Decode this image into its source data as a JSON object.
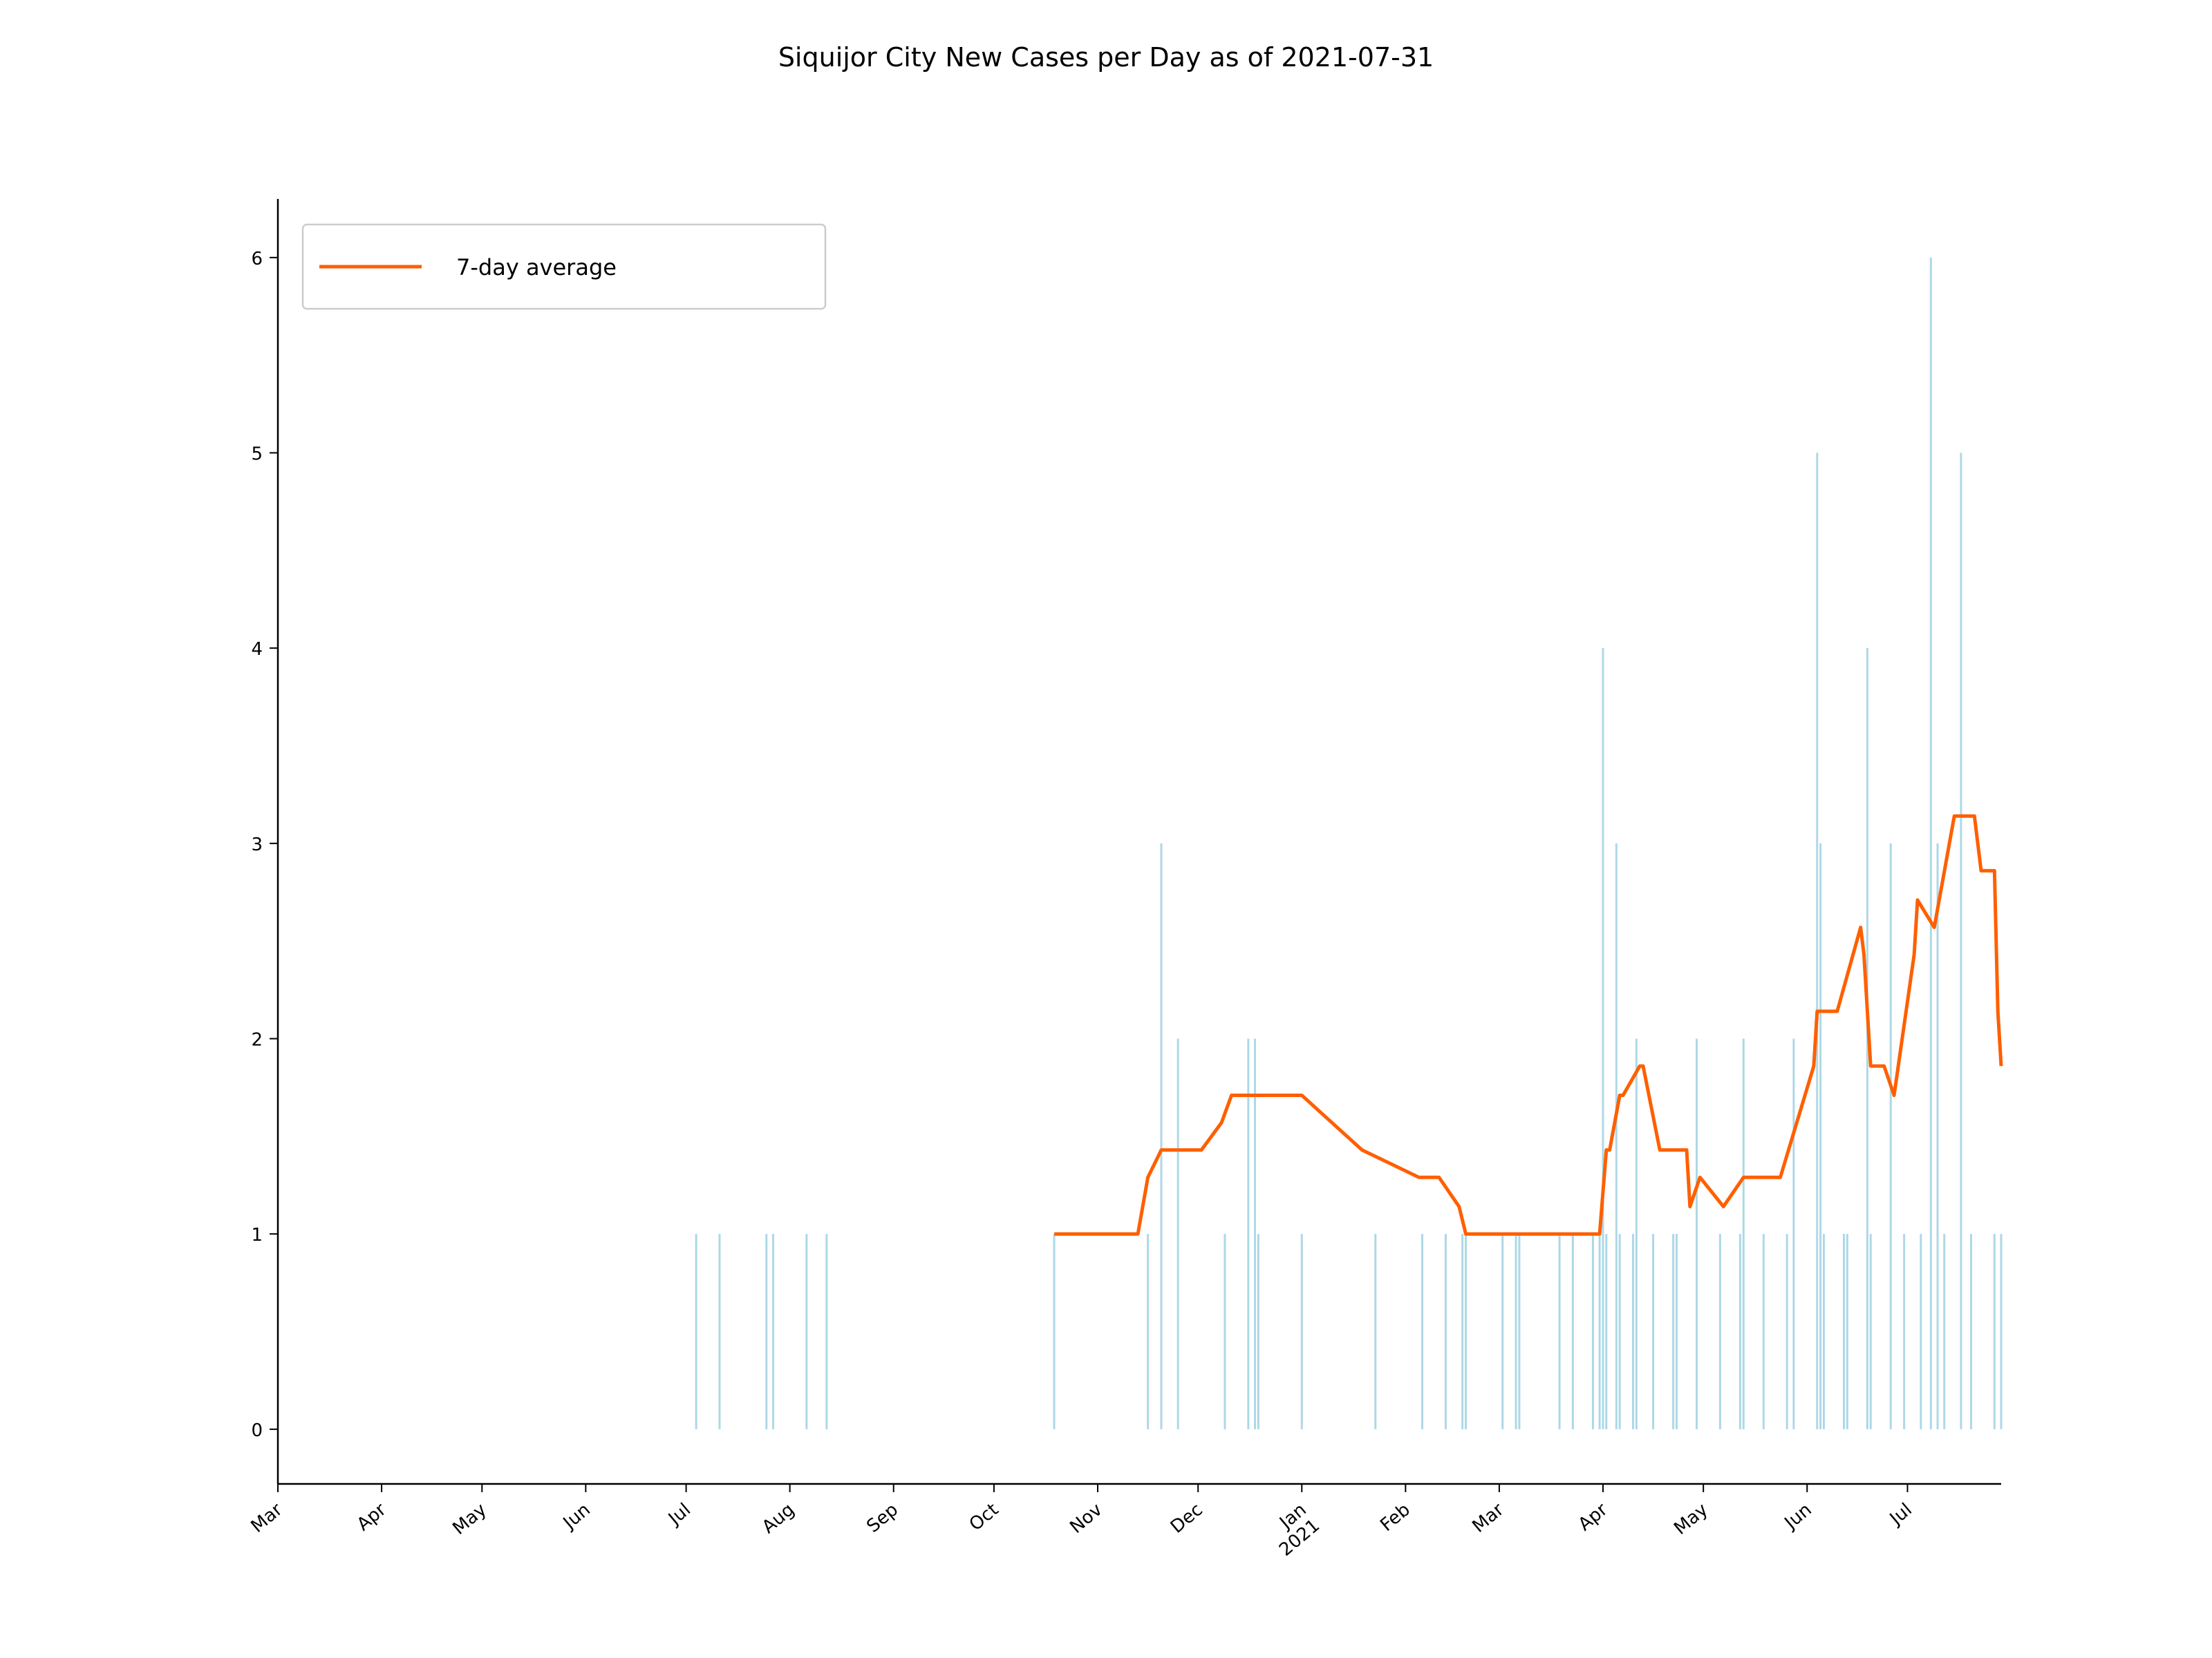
{
  "chart_data": {
    "type": "bar",
    "title": "Siquijor City New Cases per Day as of 2021-07-31",
    "xlabel": "",
    "ylabel": "",
    "legend": {
      "placement": "top-left",
      "entries": [
        "7-day average"
      ]
    },
    "grid": false,
    "xlim": [
      "2020-03-01",
      "2021-07-29"
    ],
    "ylim": [
      -0.28,
      6.3
    ],
    "yticks": [
      0,
      1,
      2,
      3,
      4,
      5,
      6
    ],
    "xticks": [
      {
        "date": "2020-03-01",
        "label": "Mar"
      },
      {
        "date": "2020-04-01",
        "label": "Apr"
      },
      {
        "date": "2020-05-01",
        "label": "May"
      },
      {
        "date": "2020-06-01",
        "label": "Jun"
      },
      {
        "date": "2020-07-01",
        "label": "Jul"
      },
      {
        "date": "2020-08-01",
        "label": "Aug"
      },
      {
        "date": "2020-09-01",
        "label": "Sep"
      },
      {
        "date": "2020-10-01",
        "label": "Oct"
      },
      {
        "date": "2020-11-01",
        "label": "Nov"
      },
      {
        "date": "2020-12-01",
        "label": "Dec"
      },
      {
        "date": "2021-01-01",
        "label": "Jan\n2021"
      },
      {
        "date": "2021-02-01",
        "label": "Feb"
      },
      {
        "date": "2021-03-01",
        "label": "Mar"
      },
      {
        "date": "2021-04-01",
        "label": "Apr"
      },
      {
        "date": "2021-05-01",
        "label": "May"
      },
      {
        "date": "2021-06-01",
        "label": "Jun"
      },
      {
        "date": "2021-07-01",
        "label": "Jul"
      }
    ],
    "bar_color": "#add8e6",
    "line_color": "#ff5f00",
    "series": [
      {
        "kind": "bar",
        "x": [
          "2020-07-04",
          "2020-07-11",
          "2020-07-25",
          "2020-07-27",
          "2020-08-06",
          "2020-08-12",
          "2020-10-19",
          "2020-11-16",
          "2020-11-20",
          "2020-11-25",
          "2020-12-09",
          "2020-12-16",
          "2020-12-18",
          "2020-12-19",
          "2021-01-01",
          "2021-01-23",
          "2021-02-06",
          "2021-02-13",
          "2021-02-18",
          "2021-02-19",
          "2021-03-02",
          "2021-03-06",
          "2021-03-07",
          "2021-03-19",
          "2021-03-23",
          "2021-03-29",
          "2021-03-31",
          "2021-04-01",
          "2021-04-02",
          "2021-04-05",
          "2021-04-06",
          "2021-04-10",
          "2021-04-11",
          "2021-04-16",
          "2021-04-22",
          "2021-04-23",
          "2021-04-29",
          "2021-05-06",
          "2021-05-12",
          "2021-05-13",
          "2021-05-19",
          "2021-05-26",
          "2021-05-28",
          "2021-06-04",
          "2021-06-05",
          "2021-06-06",
          "2021-06-12",
          "2021-06-13",
          "2021-06-19",
          "2021-06-20",
          "2021-06-26",
          "2021-06-30",
          "2021-07-05",
          "2021-07-08",
          "2021-07-10",
          "2021-07-12",
          "2021-07-17",
          "2021-07-20",
          "2021-07-27",
          "2021-07-29"
        ],
        "values": [
          1,
          1,
          1,
          1,
          1,
          1,
          1,
          1,
          3,
          2,
          1,
          2,
          2,
          1,
          1,
          1,
          1,
          1,
          1,
          1,
          1,
          1,
          1,
          1,
          1,
          1,
          1,
          4,
          1,
          3,
          1,
          1,
          2,
          1,
          1,
          1,
          2,
          1,
          1,
          2,
          1,
          1,
          2,
          5,
          3,
          1,
          1,
          1,
          4,
          1,
          3,
          1,
          1,
          6,
          3,
          1,
          5,
          1,
          1,
          1
        ]
      },
      {
        "kind": "line",
        "name": "7-day average",
        "x": [
          "2020-10-19",
          "2020-11-13",
          "2020-11-16",
          "2020-11-20",
          "2020-12-02",
          "2020-12-08",
          "2020-12-11",
          "2021-01-01",
          "2021-01-19",
          "2021-02-05",
          "2021-02-11",
          "2021-02-17",
          "2021-02-19",
          "2021-03-31",
          "2021-04-02",
          "2021-04-03",
          "2021-04-06",
          "2021-04-07",
          "2021-04-12",
          "2021-04-13",
          "2021-04-18",
          "2021-04-26",
          "2021-04-27",
          "2021-04-30",
          "2021-05-07",
          "2021-05-13",
          "2021-05-24",
          "2021-06-03",
          "2021-06-04",
          "2021-06-10",
          "2021-06-17",
          "2021-06-18",
          "2021-06-20",
          "2021-06-24",
          "2021-06-27",
          "2021-07-03",
          "2021-07-04",
          "2021-07-09",
          "2021-07-15",
          "2021-07-16",
          "2021-07-21",
          "2021-07-23",
          "2021-07-27",
          "2021-07-28",
          "2021-07-29"
        ],
        "values": [
          1.0,
          1.0,
          1.29,
          1.43,
          1.43,
          1.57,
          1.71,
          1.71,
          1.43,
          1.29,
          1.29,
          1.14,
          1.0,
          1.0,
          1.43,
          1.43,
          1.71,
          1.71,
          1.86,
          1.86,
          1.43,
          1.43,
          1.14,
          1.29,
          1.14,
          1.29,
          1.29,
          1.86,
          2.14,
          2.14,
          2.57,
          2.43,
          1.86,
          1.86,
          1.71,
          2.43,
          2.71,
          2.57,
          3.14,
          3.14,
          3.14,
          2.86,
          2.86,
          2.14,
          1.86
        ]
      }
    ]
  }
}
